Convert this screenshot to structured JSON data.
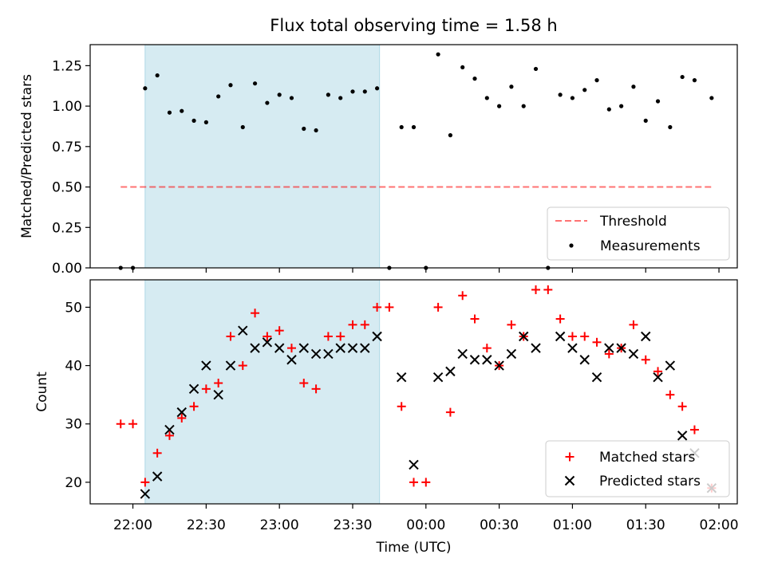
{
  "figure_title": "Flux total observing time = 1.58 h",
  "colors": {
    "shade": "#add8e6",
    "threshold": "#ff0000",
    "measurement": "#000000",
    "matched": "#ff0000",
    "predicted": "#000000"
  },
  "chart_data": [
    {
      "type": "scatter",
      "panel": "top",
      "xlabel": "",
      "ylabel": "Matched/Predicted stars",
      "ylim": [
        0,
        1.38
      ],
      "yticks": [
        0.0,
        0.25,
        0.5,
        0.75,
        1.0,
        1.25
      ],
      "ytick_labels": [
        "0.00",
        "0.25",
        "0.50",
        "0.75",
        "1.00",
        "1.25"
      ],
      "shaded_interval_min": [
        5,
        101
      ],
      "threshold": {
        "name": "Threshold",
        "y": 0.5,
        "x_range_min": [
          -5,
          237
        ],
        "style": "dashed"
      },
      "legend": {
        "location": "lower-right",
        "entries": [
          "Threshold",
          "Measurements"
        ]
      },
      "series": [
        {
          "name": "Measurements",
          "x_min": [
            -5,
            0,
            5,
            10,
            15,
            20,
            25,
            30,
            35,
            40,
            45,
            50,
            55,
            60,
            65,
            70,
            75,
            80,
            85,
            90,
            95,
            100,
            105,
            110,
            115,
            120,
            125,
            130,
            135,
            140,
            145,
            150,
            155,
            160,
            165,
            170,
            175,
            180,
            185,
            190,
            195,
            200,
            205,
            210,
            215,
            220,
            225,
            230,
            237
          ],
          "y": [
            0.0,
            0.0,
            1.11,
            1.19,
            0.96,
            0.97,
            0.91,
            0.9,
            1.06,
            1.13,
            0.87,
            1.14,
            1.02,
            1.07,
            1.05,
            0.86,
            0.85,
            1.07,
            1.05,
            1.09,
            1.09,
            1.11,
            0.0,
            0.87,
            0.87,
            0.0,
            1.32,
            0.82,
            1.24,
            1.17,
            1.05,
            1.0,
            1.12,
            1.0,
            1.23,
            0.0,
            1.07,
            1.05,
            1.1,
            1.16,
            0.98,
            1.0,
            1.12,
            0.91,
            1.03,
            0.87,
            1.18,
            1.16,
            1.05
          ]
        }
      ]
    },
    {
      "type": "scatter",
      "panel": "bottom",
      "xlabel": "Time (UTC)",
      "ylabel": "Count",
      "ylim": [
        16.3,
        54.7
      ],
      "yticks": [
        20,
        30,
        40,
        50
      ],
      "ytick_labels": [
        "20",
        "30",
        "40",
        "50"
      ],
      "xlim_min": [
        -17.5,
        247.5
      ],
      "xticks_min": [
        0,
        30,
        60,
        90,
        120,
        150,
        180,
        210,
        240
      ],
      "xtick_labels": [
        "22:00",
        "22:30",
        "23:00",
        "23:30",
        "00:00",
        "00:30",
        "01:00",
        "01:30",
        "02:00"
      ],
      "shaded_interval_min": [
        5,
        101
      ],
      "legend": {
        "location": "lower-right",
        "entries": [
          "Matched stars",
          "Predicted stars"
        ]
      },
      "series": [
        {
          "name": "Matched stars",
          "marker": "+",
          "x_min": [
            -5,
            0,
            5,
            10,
            15,
            20,
            25,
            30,
            35,
            40,
            45,
            50,
            55,
            60,
            65,
            70,
            75,
            80,
            85,
            90,
            95,
            100,
            105,
            110,
            115,
            120,
            125,
            130,
            135,
            140,
            145,
            150,
            155,
            160,
            165,
            170,
            175,
            180,
            185,
            190,
            195,
            200,
            205,
            210,
            215,
            220,
            225,
            230,
            237
          ],
          "y": [
            30,
            30,
            20,
            25,
            28,
            31,
            33,
            36,
            37,
            45,
            40,
            49,
            45,
            46,
            43,
            37,
            36,
            45,
            45,
            47,
            47,
            50,
            50,
            33,
            20,
            20,
            50,
            32,
            52,
            48,
            43,
            40,
            47,
            45,
            53,
            53,
            48,
            45,
            45,
            44,
            42,
            43,
            47,
            41,
            39,
            35,
            33,
            29,
            19
          ]
        },
        {
          "name": "Predicted stars",
          "marker": "x",
          "x_min": [
            5,
            10,
            15,
            20,
            25,
            30,
            35,
            40,
            45,
            50,
            55,
            60,
            65,
            70,
            75,
            80,
            85,
            90,
            95,
            100,
            110,
            115,
            125,
            130,
            135,
            140,
            145,
            150,
            155,
            160,
            165,
            175,
            180,
            185,
            190,
            195,
            200,
            205,
            210,
            215,
            220,
            225,
            230,
            237
          ],
          "y": [
            18,
            21,
            29,
            32,
            36,
            40,
            35,
            40,
            46,
            43,
            44,
            43,
            41,
            43,
            42,
            42,
            43,
            43,
            43,
            45,
            38,
            23,
            38,
            39,
            42,
            41,
            41,
            40,
            42,
            45,
            43,
            45,
            43,
            41,
            38,
            43,
            43,
            42,
            45,
            38,
            40,
            28,
            25,
            19
          ]
        }
      ]
    }
  ]
}
